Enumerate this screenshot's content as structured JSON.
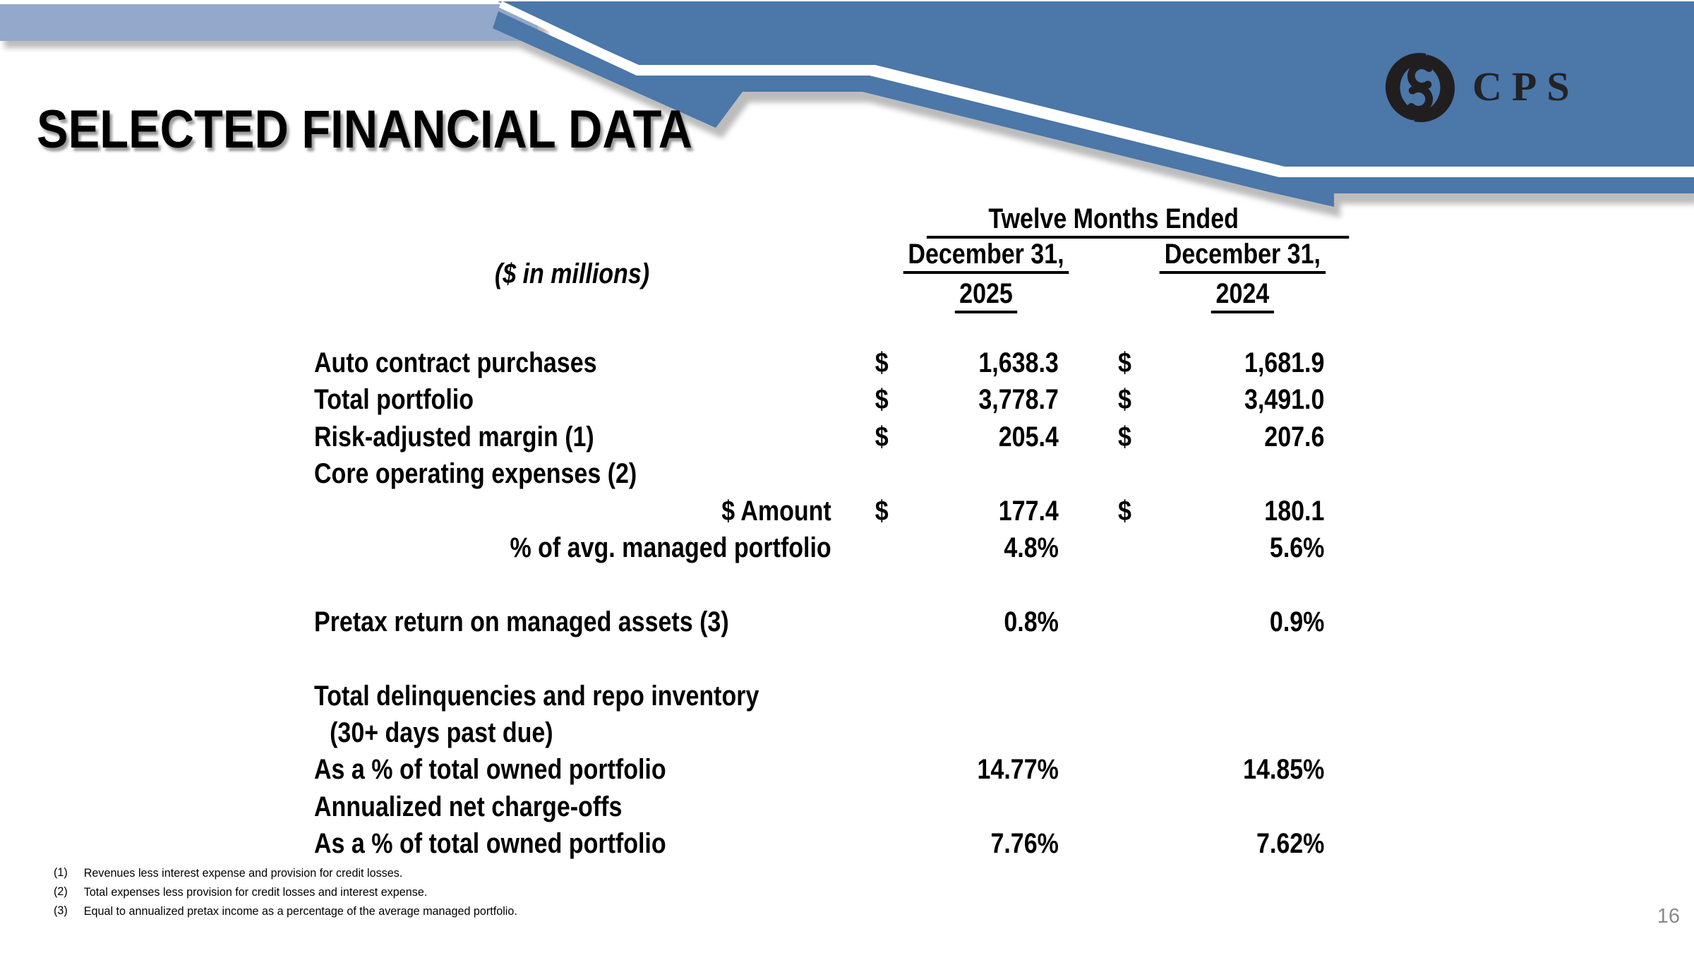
{
  "slide": {
    "title": "SELECTED FINANCIAL DATA",
    "page_number": "16"
  },
  "logo": {
    "text": "CPS",
    "emblem": "cps-swirl-emblem"
  },
  "colors": {
    "band_light_blue": "#93a8ca",
    "ribbon_dark_blue": "#4b77a9",
    "shadow_gray": "#a5a5a5",
    "logo_charcoal": "#211e20",
    "page_number_gray": "#8a8a8a",
    "text_black": "#000000"
  },
  "table": {
    "units_label": "($ in millions)",
    "header": {
      "group": "Twelve Months Ended",
      "columns": [
        {
          "line1": "December 31,",
          "line2": "2025"
        },
        {
          "line1": "December 31,",
          "line2": "2024"
        }
      ]
    },
    "rows": [
      {
        "label": "Auto contract purchases",
        "align": "left",
        "indent": false,
        "cur1": "$",
        "val1": "1,638.3",
        "cur2": "$",
        "val2": "1,681.9"
      },
      {
        "label": "Total portfolio",
        "align": "left",
        "indent": false,
        "cur1": "$",
        "val1": "3,778.7",
        "cur2": "$",
        "val2": "3,491.0"
      },
      {
        "label": "Risk-adjusted margin (1)",
        "align": "left",
        "indent": false,
        "cur1": "$",
        "val1": "205.4",
        "cur2": "$",
        "val2": "207.6"
      },
      {
        "label": "Core operating expenses (2)",
        "align": "left",
        "indent": false,
        "cur1": "",
        "val1": "",
        "cur2": "",
        "val2": ""
      },
      {
        "label": "$ Amount",
        "align": "right",
        "indent": false,
        "cur1": "$",
        "val1": "177.4",
        "cur2": "$",
        "val2": "180.1"
      },
      {
        "label": "% of avg. managed portfolio",
        "align": "right",
        "indent": false,
        "cur1": "",
        "val1": "4.8%",
        "cur2": "",
        "val2": "5.6%"
      },
      {
        "label": "",
        "align": "left",
        "indent": false,
        "cur1": "",
        "val1": "",
        "cur2": "",
        "val2": ""
      },
      {
        "label": "Pretax return on managed assets (3)",
        "align": "left",
        "indent": false,
        "cur1": "",
        "val1": "0.8%",
        "cur2": "",
        "val2": "0.9%"
      },
      {
        "label": "",
        "align": "left",
        "indent": false,
        "cur1": "",
        "val1": "",
        "cur2": "",
        "val2": ""
      },
      {
        "label": "Total delinquencies and repo inventory",
        "align": "left",
        "indent": false,
        "cur1": "",
        "val1": "",
        "cur2": "",
        "val2": ""
      },
      {
        "label": "(30+ days past due)",
        "align": "left",
        "indent": true,
        "cur1": "",
        "val1": "",
        "cur2": "",
        "val2": ""
      },
      {
        "label": "As a % of total owned portfolio",
        "align": "left",
        "indent": false,
        "cur1": "",
        "val1": "14.77%",
        "cur2": "",
        "val2": "14.85%"
      },
      {
        "label": "Annualized net charge-offs",
        "align": "left",
        "indent": false,
        "cur1": "",
        "val1": "",
        "cur2": "",
        "val2": ""
      },
      {
        "label": "As a % of total owned portfolio",
        "align": "left",
        "indent": false,
        "cur1": "",
        "val1": "7.76%",
        "cur2": "",
        "val2": "7.62%"
      }
    ]
  },
  "footnotes": [
    {
      "marker": "(1)",
      "text": "Revenues less interest expense and provision for credit losses."
    },
    {
      "marker": "(2)",
      "text": "Total expenses less provision for credit losses and interest expense."
    },
    {
      "marker": "(3)",
      "text": "Equal to annualized pretax income as a percentage of the average managed portfolio."
    }
  ]
}
